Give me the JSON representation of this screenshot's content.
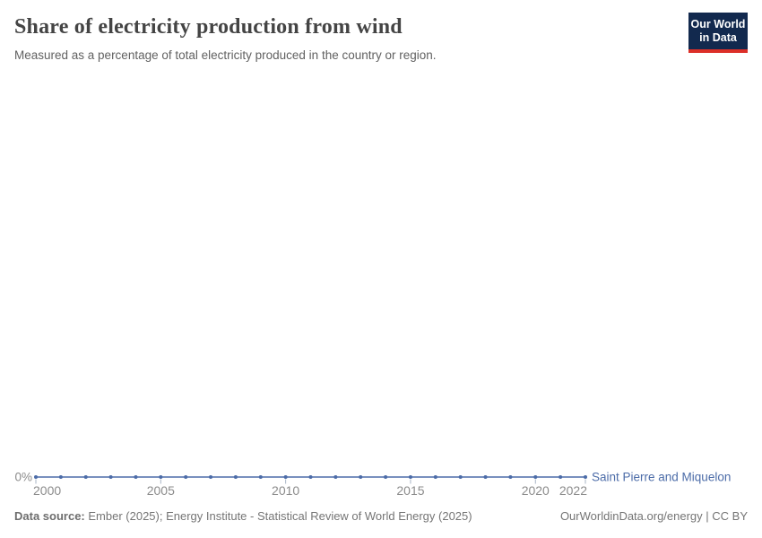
{
  "header": {
    "title": "Share of electricity production from wind",
    "subtitle": "Measured as a percentage of total electricity produced in the country or region.",
    "logo": {
      "line1": "Our World",
      "line2": "in Data"
    }
  },
  "chart_data": {
    "type": "line",
    "title": "Share of electricity production from wind",
    "xlabel": "",
    "ylabel": "",
    "x": [
      2000,
      2001,
      2002,
      2003,
      2004,
      2005,
      2006,
      2007,
      2008,
      2009,
      2010,
      2011,
      2012,
      2013,
      2014,
      2015,
      2016,
      2017,
      2018,
      2019,
      2020,
      2021,
      2022
    ],
    "series": [
      {
        "name": "Saint Pierre and Miquelon",
        "color": "#4C6CA8",
        "values": [
          0,
          0,
          0,
          0,
          0,
          0,
          0,
          0,
          0,
          0,
          0,
          0,
          0,
          0,
          0,
          0,
          0,
          0,
          0,
          0,
          0,
          0,
          0
        ]
      }
    ],
    "x_ticks": [
      2000,
      2005,
      2010,
      2015,
      2020,
      2022
    ],
    "y_axis": {
      "ticks": [
        "0%"
      ]
    },
    "grid": false,
    "legend": "label at end of line",
    "markers": true
  },
  "footer": {
    "source_label": "Data source:",
    "source_text": "Ember (2025); Energy Institute - Statistical Review of World Energy (2025)",
    "rights": "OurWorldinData.org/energy | CC BY"
  },
  "colors": {
    "line": "#4C6CA8",
    "axis_text": "#8B8B8B",
    "tick": "#A9B5C6",
    "title": "#444444",
    "subtitle": "#616161",
    "footer_text": "#757575",
    "logo_bg": "#12294E",
    "logo_stripe": "#DC2F28"
  }
}
